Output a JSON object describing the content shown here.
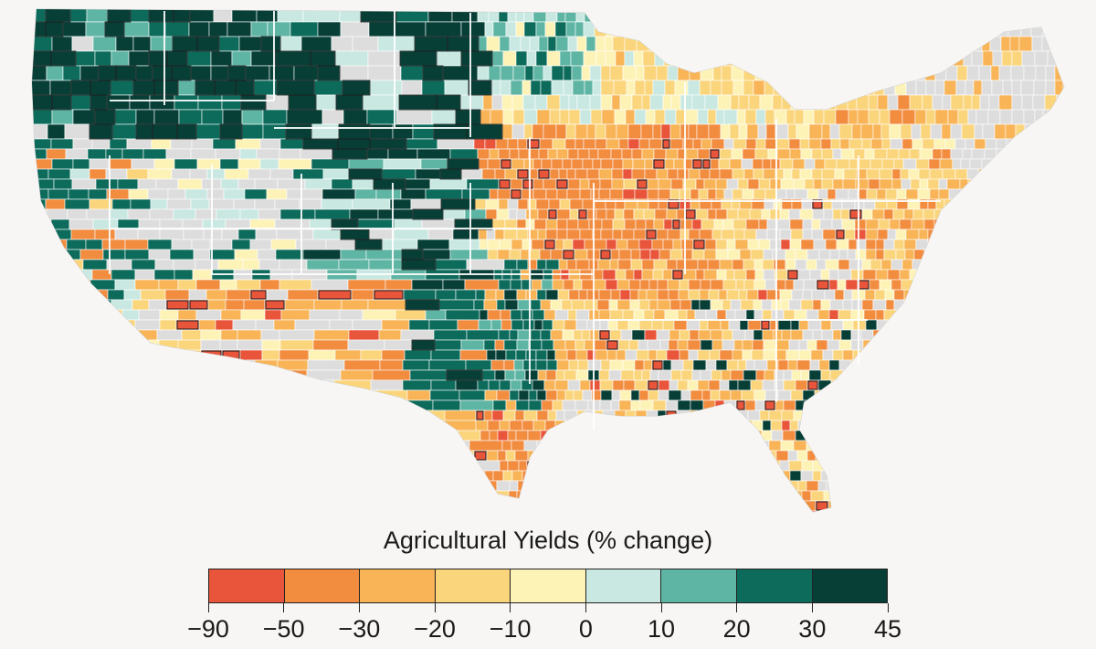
{
  "map": {
    "background_color": "#f7f6f4",
    "nodata_color": "#dddddd",
    "county_border_color": "#ffffff",
    "highlight_border_color": "#1a1a1a"
  },
  "legend": {
    "title": "Agricultural Yields (% change)",
    "breaks": [
      "−90",
      "−50",
      "−30",
      "−20",
      "−10",
      "0",
      "10",
      "20",
      "30",
      "45"
    ],
    "bins": [
      {
        "from": -90,
        "to": -50,
        "color": "#e8553a"
      },
      {
        "from": -50,
        "to": -30,
        "color": "#f28c3f"
      },
      {
        "from": -30,
        "to": -20,
        "color": "#f8b456"
      },
      {
        "from": -20,
        "to": -10,
        "color": "#fbd57c"
      },
      {
        "from": -10,
        "to": 0,
        "color": "#fdf3b6"
      },
      {
        "from": 0,
        "to": 10,
        "color": "#c8e8e1"
      },
      {
        "from": 10,
        "to": 20,
        "color": "#5fb5a4"
      },
      {
        "from": 20,
        "to": 30,
        "color": "#0d6b5c"
      },
      {
        "from": 30,
        "to": 45,
        "color": "#073f37"
      }
    ]
  }
}
